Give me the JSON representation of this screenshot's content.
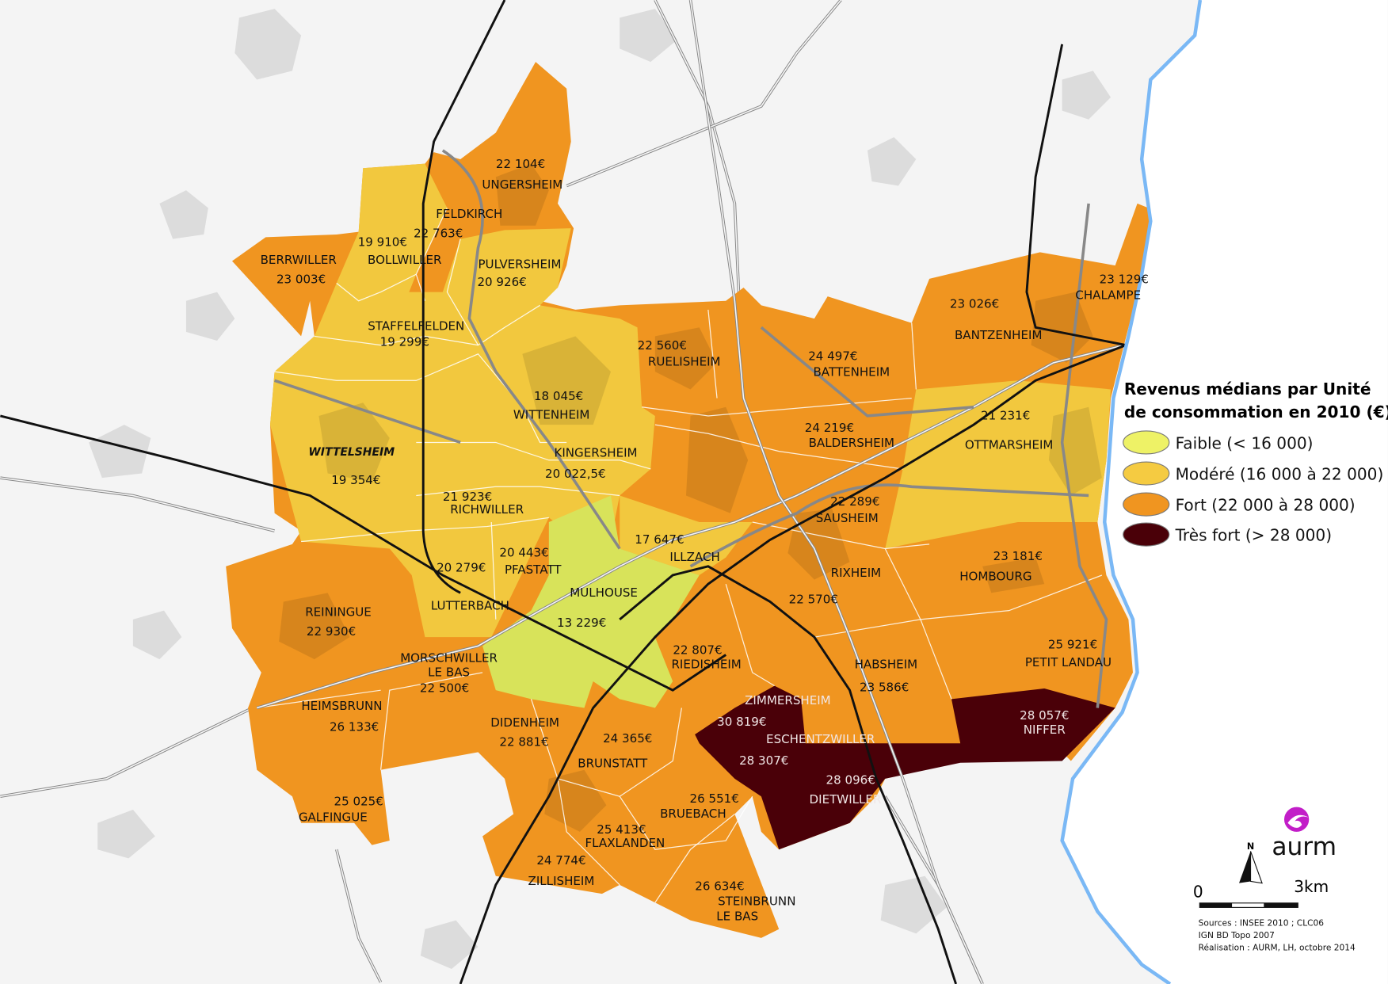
{
  "map": {
    "legend": {
      "title_line1": "Revenus médians par Unité",
      "title_line2": "de consommation en 2010 (€)",
      "classes": [
        {
          "label": "Faible (< 16 000)",
          "color": "#eef266"
        },
        {
          "label": "Modéré (16 000 à 22 000)",
          "color": "#f5cb41"
        },
        {
          "label": "Fort (22 000 à 28 000)",
          "color": "#f09520"
        },
        {
          "label": "Très fort (> 28 000)",
          "color": "#4a0008"
        }
      ]
    },
    "colors": {
      "faible": "#d8e35a",
      "modere": "#f2c83e",
      "fort": "#f09520",
      "tres_fort": "#4a0008",
      "river": "#7ab8f5",
      "logo": "#c21ec8"
    },
    "communes": [
      {
        "name": "UNGERSHEIM",
        "value": "22 104€",
        "class": "fort"
      },
      {
        "name": "FELDKIRCH",
        "value": "22 763€",
        "class": "fort"
      },
      {
        "name": "BOLLWILLER",
        "value": "19 910€",
        "class": "modere"
      },
      {
        "name": "BERRWILLER",
        "value": "23 003€",
        "class": "fort"
      },
      {
        "name": "PULVERSHEIM",
        "value": "20 926€",
        "class": "modere"
      },
      {
        "name": "STAFFELFELDEN",
        "value": "19 299€",
        "class": "modere"
      },
      {
        "name": "RUELISHEIM",
        "value": "22 560€",
        "class": "fort"
      },
      {
        "name": "BATTENHEIM",
        "value": "24 497€",
        "class": "fort"
      },
      {
        "name": "BANTZENHEIM",
        "value": "23 026€",
        "class": "fort"
      },
      {
        "name": "CHALAMPE",
        "value": "23 129€",
        "class": "fort"
      },
      {
        "name": "WITTENHEIM",
        "value": "18 045€",
        "class": "modere"
      },
      {
        "name": "KINGERSHEIM",
        "value": "20 022,5€",
        "class": "modere"
      },
      {
        "name": "WITTELSHEIM",
        "value": "19 354€",
        "class": "modere"
      },
      {
        "name": "BALDERSHEIM",
        "value": "24 219€",
        "class": "fort"
      },
      {
        "name": "OTTMARSHEIM",
        "value": "21 231€",
        "class": "modere"
      },
      {
        "name": "RICHWILLER",
        "value": "21 923€",
        "class": "modere"
      },
      {
        "name": "SAUSHEIM",
        "value": "22 289€",
        "class": "fort"
      },
      {
        "name": "ILLZACH",
        "value": "17 647€",
        "class": "modere"
      },
      {
        "name": "PFASTATT",
        "value": "20 443€",
        "class": "modere"
      },
      {
        "name": "LUTTERBACH",
        "value": "20 279€",
        "class": "modere"
      },
      {
        "name": "MULHOUSE",
        "value": "13 229€",
        "class": "faible"
      },
      {
        "name": "RIXHEIM",
        "value": "22 570€",
        "class": "fort"
      },
      {
        "name": "HOMBOURG",
        "value": "23 181€",
        "class": "fort"
      },
      {
        "name": "REININGUE",
        "value": "22 930€",
        "class": "fort"
      },
      {
        "name": "MORSCHWILLER",
        "name2": "LE BAS",
        "value": "22 500€",
        "class": "fort"
      },
      {
        "name": "RIEDISHEIM",
        "value": "22 807€",
        "class": "fort"
      },
      {
        "name": "HABSHEIM",
        "value": "23 586€",
        "class": "fort"
      },
      {
        "name": "PETIT LANDAU",
        "value": "25 921€",
        "class": "fort"
      },
      {
        "name": "HEIMSBRUNN",
        "value": "26 133€",
        "class": "fort"
      },
      {
        "name": "ZIMMERSHEIM",
        "value": "30 819€",
        "class": "tres_fort"
      },
      {
        "name": "ESCHENTZWILLER",
        "value": "28 307€",
        "class": "tres_fort"
      },
      {
        "name": "NIFFER",
        "value": "28 057€",
        "class": "tres_fort"
      },
      {
        "name": "DIDENHEIM",
        "value": "22 881€",
        "class": "fort"
      },
      {
        "name": "BRUNSTATT",
        "value": "24 365€",
        "class": "fort"
      },
      {
        "name": "DIETWILLER",
        "value": "28 096€",
        "class": "tres_fort"
      },
      {
        "name": "GALFINGUE",
        "value": "25 025€",
        "class": "fort"
      },
      {
        "name": "BRUEBACH",
        "value": "26 551€",
        "class": "fort"
      },
      {
        "name": "FLAXLANDEN",
        "value": "25 413€",
        "class": "fort"
      },
      {
        "name": "ZILLISHEIM",
        "value": "24 774€",
        "class": "fort"
      },
      {
        "name": "STEINBRUNN",
        "name2": "LE BAS",
        "value": "26 634€",
        "class": "fort"
      }
    ],
    "north_label": "N",
    "scale": {
      "start": "0",
      "end": "3km"
    },
    "logo_text": "aurm",
    "sources": [
      "Sources : INSEE 2010 ; CLC06",
      "IGN BD Topo 2007",
      "Réalisation : AURM, LH, octobre 2014"
    ]
  }
}
